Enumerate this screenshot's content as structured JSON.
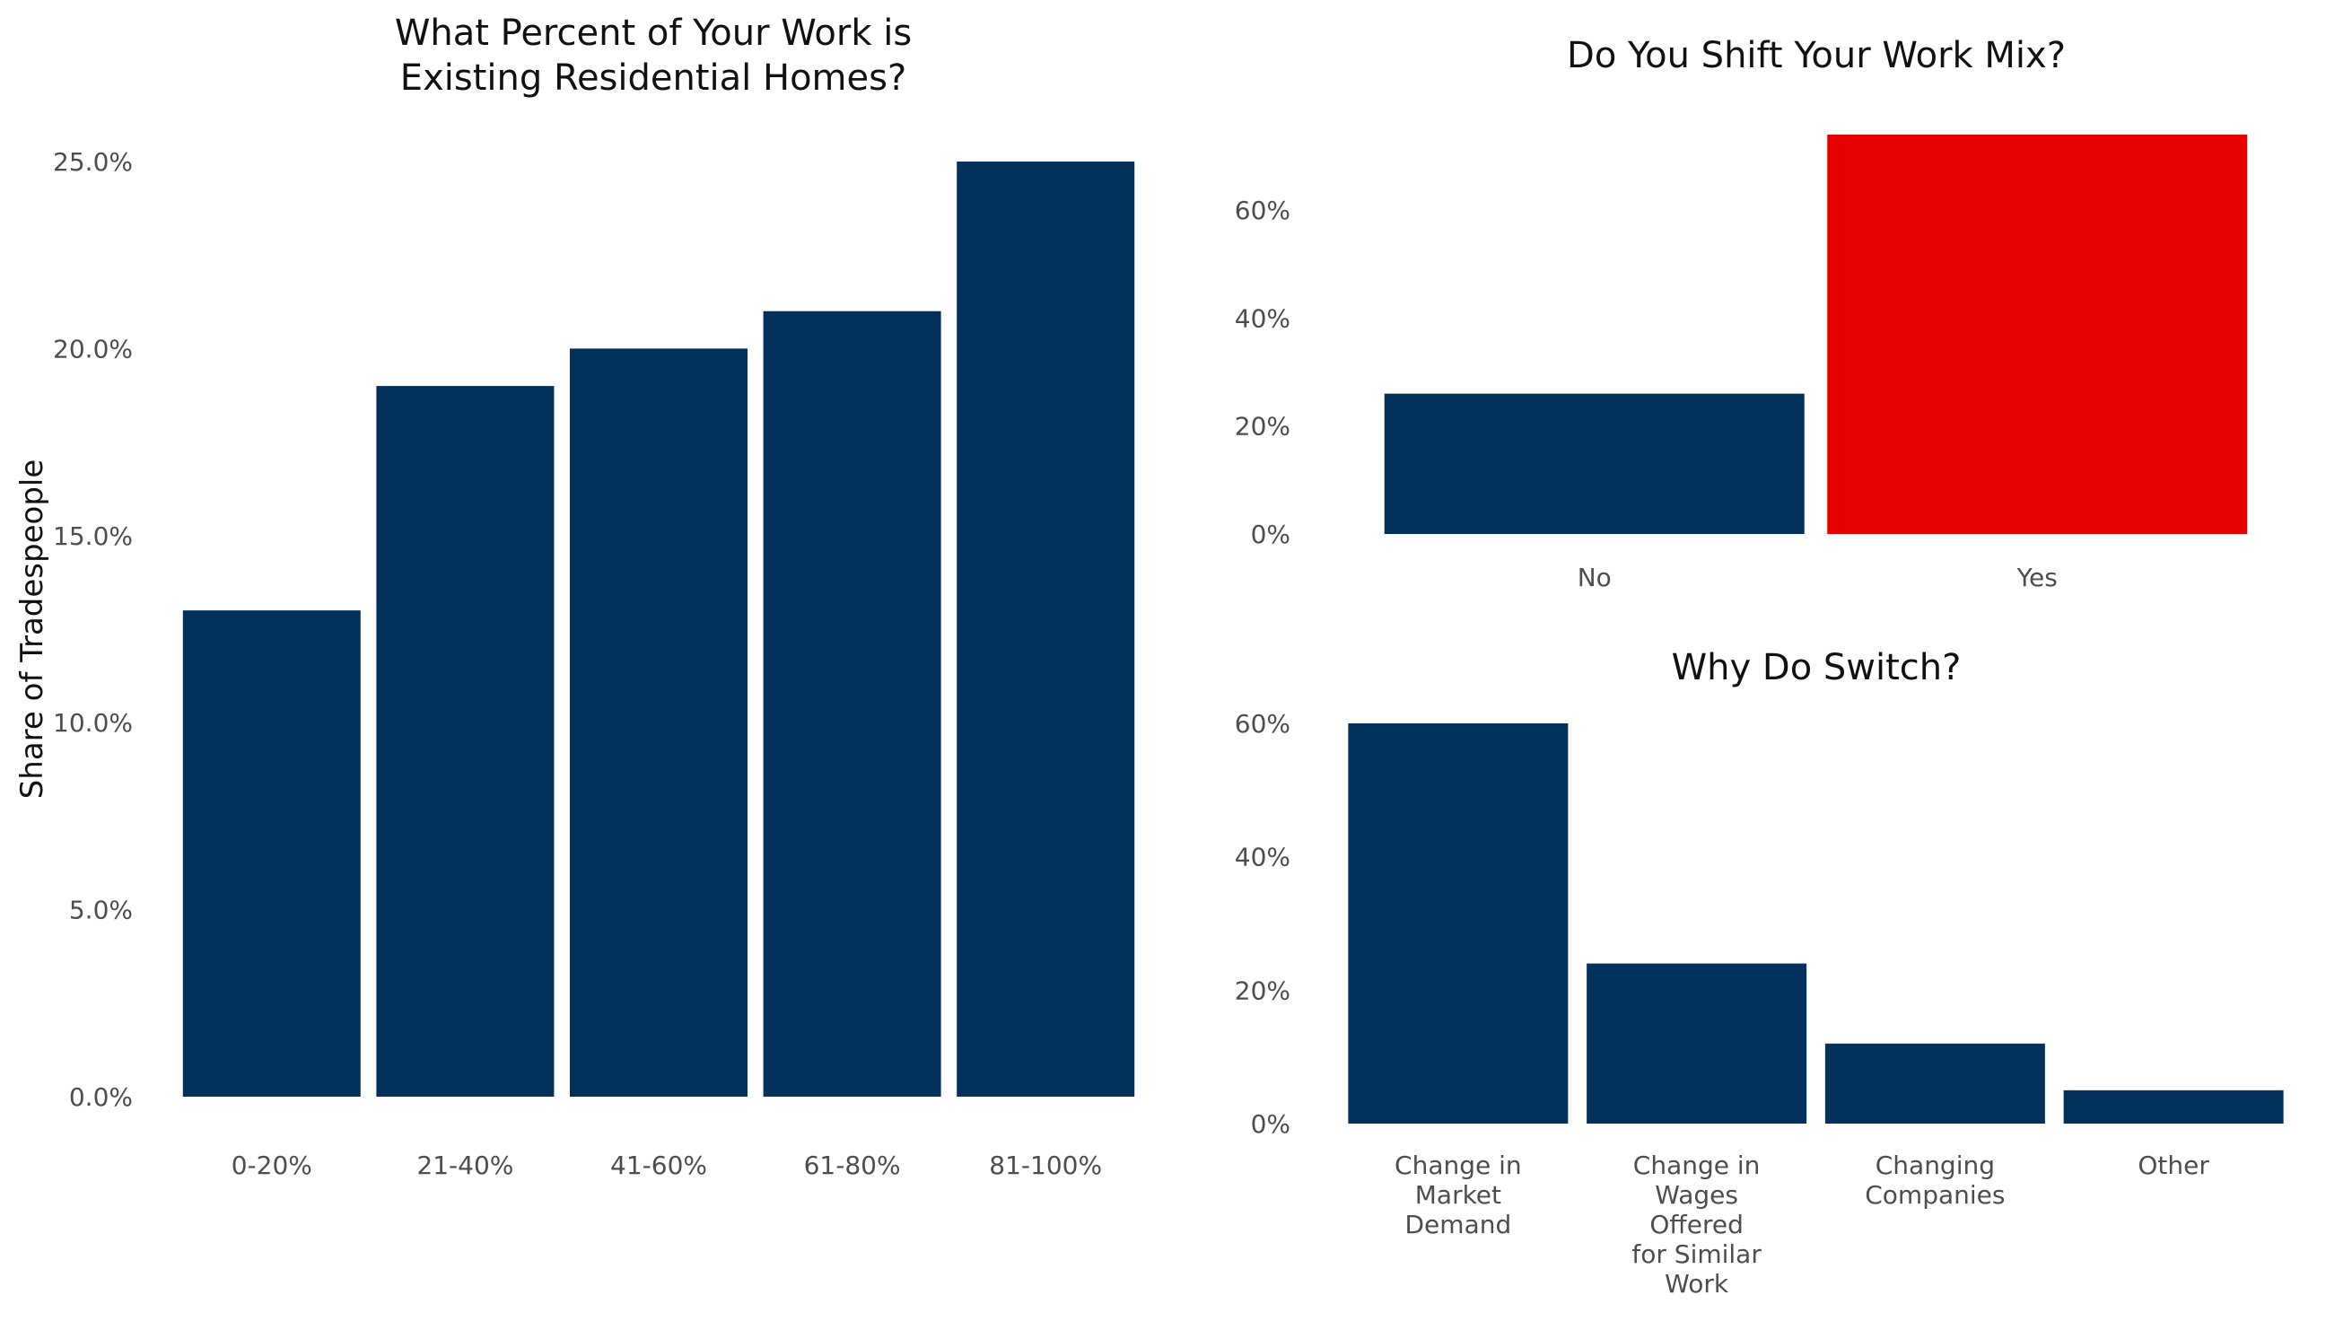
{
  "colors": {
    "bar": "#02325b",
    "highlight": "#e60000",
    "tick_text": "#4d4d4d",
    "title_text": "#111111",
    "background": "#ffffff"
  },
  "chart_data": [
    {
      "id": "residential",
      "type": "bar",
      "title_lines": [
        "What Percent of Your Work is",
        "Existing Residential Homes?"
      ],
      "xlabel": "",
      "ylabel": "Share of Tradespeople",
      "categories": [
        "0-20%",
        "21-40%",
        "41-60%",
        "61-80%",
        "81-100%"
      ],
      "values": [
        13,
        19,
        20,
        21,
        25
      ],
      "yticks": [
        0,
        5,
        10,
        15,
        20,
        25
      ],
      "ytick_labels": [
        "0.0%",
        "5.0%",
        "10.0%",
        "15.0%",
        "20.0%",
        "25.0%"
      ],
      "ylim": [
        0,
        25
      ],
      "grid": false,
      "legend": "none"
    },
    {
      "id": "shift",
      "type": "bar",
      "title_lines": [
        "Do You Shift Your Work Mix?"
      ],
      "xlabel": "",
      "ylabel": "",
      "categories": [
        "No",
        "Yes"
      ],
      "values": [
        26,
        74
      ],
      "bar_colors": [
        "bar",
        "highlight"
      ],
      "yticks": [
        0,
        20,
        40,
        60
      ],
      "ytick_labels": [
        "0%",
        "20%",
        "40%",
        "60%"
      ],
      "ylim": [
        0,
        74
      ],
      "grid": false,
      "legend": "none"
    },
    {
      "id": "switch",
      "type": "bar",
      "title_lines": [
        "Why Do Switch?"
      ],
      "xlabel": "",
      "ylabel": "",
      "categories": [
        [
          "Change in",
          "Market",
          "Demand"
        ],
        [
          "Change in",
          "Wages",
          "Offered",
          "for Similar",
          "Work"
        ],
        [
          "Changing",
          "Companies"
        ],
        [
          "Other"
        ]
      ],
      "values": [
        60,
        24,
        12,
        5
      ],
      "yticks": [
        0,
        20,
        40,
        60
      ],
      "ytick_labels": [
        "0%",
        "20%",
        "40%",
        "60%"
      ],
      "ylim": [
        0,
        60
      ],
      "grid": false,
      "legend": "none"
    }
  ]
}
